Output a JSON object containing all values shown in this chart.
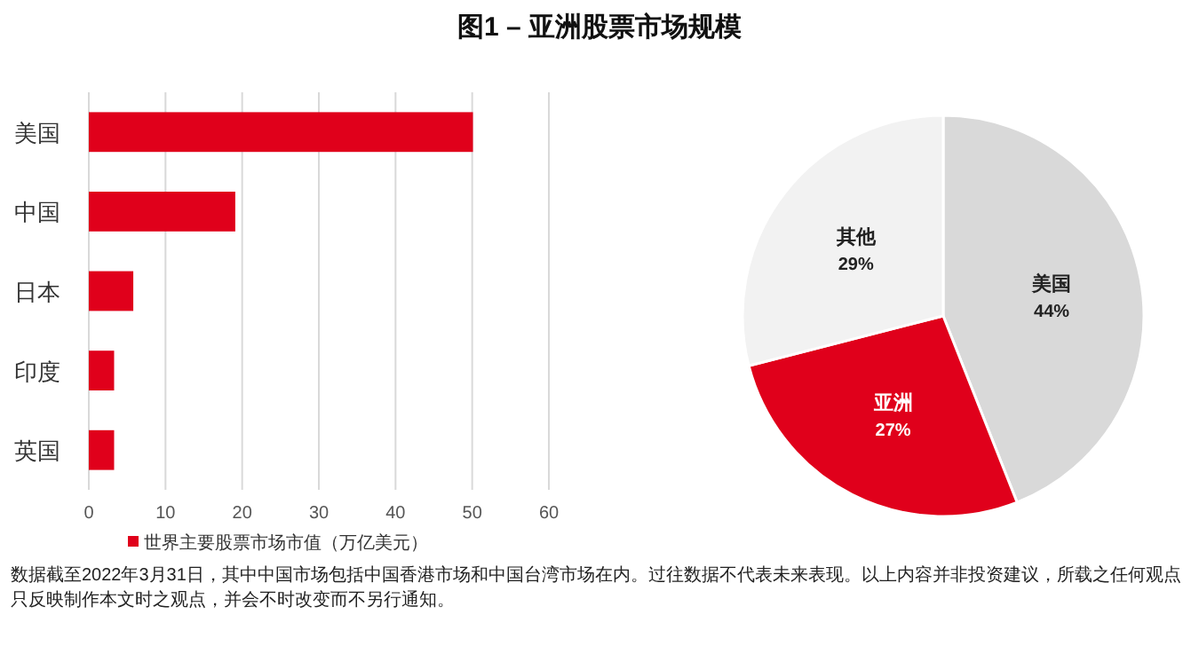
{
  "chart_data": [
    {
      "type": "bar",
      "orientation": "horizontal",
      "title": "图1 – 亚洲股票市场规模",
      "categories": [
        "美国",
        "中国",
        "日本",
        "印度",
        "英国"
      ],
      "series": [
        {
          "name": "世界主要股票市场市值（万亿美元）",
          "color": "#e0001b",
          "values": [
            50.1,
            19.1,
            5.8,
            3.3,
            3.3
          ]
        }
      ],
      "xlim": [
        0,
        60
      ],
      "xticks": [
        0,
        10,
        20,
        30,
        40,
        50,
        60
      ],
      "grid": "x",
      "legend": "bottom",
      "annotations": [
        "数据截至2022年3月31日，其中中国市场包括中国香港市场和中国台湾市场在内。过往数据不代表未来表现。以上内容并非投资建议，所载之任何观点只反映制作本文时之观点，并会不时改变而不另行通知。"
      ]
    },
    {
      "type": "pie",
      "categories": [
        "美国",
        "亚洲",
        "其他"
      ],
      "values": [
        44,
        27,
        29
      ],
      "colors": [
        "#d9d9d9",
        "#e0001b",
        "#f2f2f2"
      ],
      "value_labels": [
        "44%",
        "27%",
        "29%"
      ]
    }
  ]
}
